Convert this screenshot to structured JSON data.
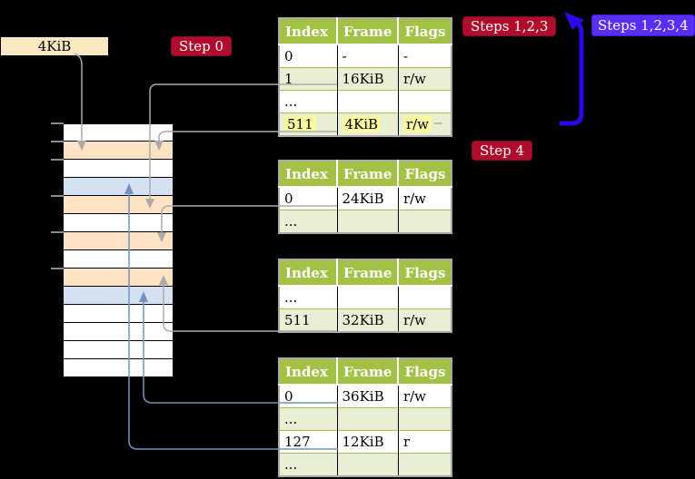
{
  "labels": {
    "frame_label": "4KiB",
    "step0": "Step 0",
    "steps123": "Steps 1,2,3",
    "steps1234": "Steps 1,2,3,4",
    "step4": "Step 4"
  },
  "tables": [
    {
      "name": "page-table-l4",
      "columns": [
        "Index",
        "Frame",
        "Flags"
      ],
      "rows": [
        {
          "cells": [
            "0",
            "-",
            "-"
          ]
        },
        {
          "cells": [
            "1",
            "16KiB",
            "r/w"
          ]
        },
        {
          "cells": [
            "...",
            "",
            ""
          ]
        },
        {
          "cells": [
            "511",
            "4KiB",
            "r/w"
          ],
          "highlighted": true
        }
      ]
    },
    {
      "name": "page-table-l3",
      "columns": [
        "Index",
        "Frame",
        "Flags"
      ],
      "rows": [
        {
          "cells": [
            "0",
            "24KiB",
            "r/w"
          ]
        },
        {
          "cells": [
            "...",
            "",
            ""
          ]
        }
      ]
    },
    {
      "name": "page-table-l2",
      "columns": [
        "Index",
        "Frame",
        "Flags"
      ],
      "rows": [
        {
          "cells": [
            "...",
            "",
            ""
          ]
        },
        {
          "cells": [
            "511",
            "32KiB",
            "r/w"
          ]
        }
      ]
    },
    {
      "name": "page-table-l1",
      "columns": [
        "Index",
        "Frame",
        "Flags"
      ],
      "rows": [
        {
          "cells": [
            "0",
            "36KiB",
            "r/w"
          ]
        },
        {
          "cells": [
            "...",
            "",
            ""
          ]
        },
        {
          "cells": [
            "127",
            "12KiB",
            "r"
          ]
        },
        {
          "cells": [
            "...",
            "",
            ""
          ]
        }
      ]
    }
  ],
  "memory_stack": {
    "rows": [
      "free",
      "table",
      "free",
      "page",
      "table",
      "free",
      "table",
      "free",
      "table",
      "page",
      "free",
      "free",
      "free",
      "free"
    ],
    "tick_boundaries": [
      0,
      1,
      2,
      4,
      6,
      8
    ]
  },
  "colors": {
    "background": "#000000",
    "table_header_green": "#a3c144",
    "table_row_green": "#e9efd5",
    "highlight_yellow": "#fbf89f",
    "frame_table_orange": "#fde3c3",
    "frame_page_blue": "#d3e1f3",
    "frame_label_wheat": "#fae8c0",
    "step_badge_red": "#b00d2e",
    "steps_badge_violet": "#5a2ef2",
    "arrow_gray": "#ababab",
    "arrow_steelblue": "#7492c1",
    "arrow_loop_blue": "#2a09e8"
  }
}
